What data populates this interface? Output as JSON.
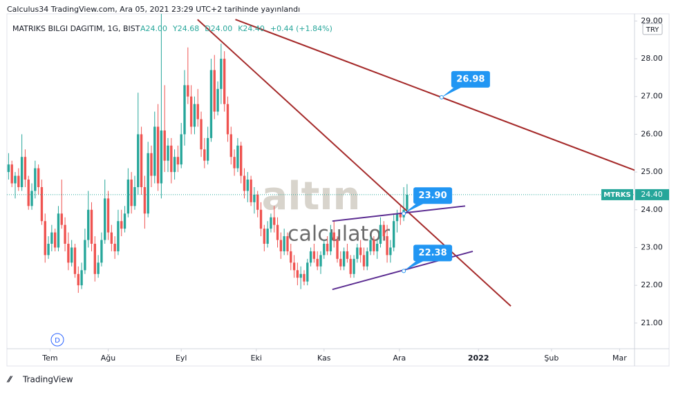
{
  "header": {
    "published": "Calculus34 TradingView.com, Ara 05, 2021 23:29 UTC+2 tarihinde yayınlandı",
    "symbol": "MATRIKS BILGI DAGITIM, 1G, BIST",
    "ohlc": [
      "A24.00",
      "Y24.68",
      "D24.00",
      "K24.40"
    ],
    "change": "+0.44 (+1.84%)",
    "currency": "TRY"
  },
  "watermark": {
    "brand": "altın",
    "sub": "calculator"
  },
  "dividend_badge": "D",
  "footer": "TradingView",
  "chart_data": {
    "type": "candlestick",
    "up_color": "#26a69a",
    "down_color": "#ef5350",
    "candles": [
      [
        25.0,
        25.5,
        24.8,
        25.2
      ],
      [
        25.2,
        25.3,
        24.6,
        24.7
      ],
      [
        24.7,
        25.0,
        24.3,
        24.9
      ],
      [
        24.9,
        25.1,
        24.5,
        24.6
      ],
      [
        24.6,
        26.0,
        24.5,
        25.4
      ],
      [
        25.4,
        25.6,
        24.6,
        24.8
      ],
      [
        24.8,
        24.9,
        24.0,
        24.1
      ],
      [
        24.1,
        24.7,
        24.0,
        24.5
      ],
      [
        24.5,
        25.3,
        24.3,
        25.1
      ],
      [
        25.1,
        25.2,
        24.4,
        24.6
      ],
      [
        24.6,
        24.8,
        23.6,
        23.7
      ],
      [
        23.7,
        23.9,
        22.6,
        22.8
      ],
      [
        22.8,
        23.3,
        22.7,
        23.1
      ],
      [
        23.1,
        23.6,
        22.9,
        23.4
      ],
      [
        23.4,
        23.5,
        22.9,
        23.0
      ],
      [
        23.0,
        24.1,
        22.9,
        23.9
      ],
      [
        23.9,
        24.8,
        23.5,
        23.6
      ],
      [
        23.6,
        23.8,
        22.9,
        23.1
      ],
      [
        23.1,
        23.4,
        22.4,
        22.6
      ],
      [
        22.6,
        23.2,
        22.5,
        23.0
      ],
      [
        23.0,
        23.1,
        22.2,
        22.3
      ],
      [
        22.3,
        22.5,
        21.8,
        22.0
      ],
      [
        22.0,
        22.6,
        21.9,
        22.4
      ],
      [
        22.4,
        23.5,
        22.3,
        23.2
      ],
      [
        23.2,
        24.5,
        23.0,
        24.0
      ],
      [
        24.0,
        24.2,
        22.9,
        23.1
      ],
      [
        23.1,
        23.3,
        22.1,
        22.3
      ],
      [
        22.3,
        22.8,
        22.2,
        22.6
      ],
      [
        22.6,
        23.4,
        22.5,
        23.2
      ],
      [
        23.2,
        24.8,
        23.1,
        24.3
      ],
      [
        24.3,
        24.5,
        23.2,
        23.4
      ],
      [
        23.4,
        23.6,
        22.9,
        23.1
      ],
      [
        23.1,
        23.3,
        22.7,
        22.9
      ],
      [
        22.9,
        24.0,
        22.8,
        23.7
      ],
      [
        23.7,
        24.0,
        23.3,
        23.5
      ],
      [
        23.5,
        24.1,
        23.4,
        23.9
      ],
      [
        23.9,
        25.1,
        23.8,
        24.8
      ],
      [
        24.8,
        25.0,
        23.9,
        24.1
      ],
      [
        24.1,
        24.9,
        24.0,
        24.6
      ],
      [
        24.6,
        27.1,
        24.4,
        26.0
      ],
      [
        26.0,
        26.2,
        24.4,
        24.6
      ],
      [
        24.6,
        24.9,
        23.5,
        23.9
      ],
      [
        23.9,
        25.8,
        23.8,
        25.5
      ],
      [
        25.5,
        25.7,
        24.6,
        24.9
      ],
      [
        24.9,
        26.6,
        24.7,
        26.2
      ],
      [
        26.2,
        26.8,
        24.5,
        24.7
      ],
      [
        24.7,
        29.3,
        24.3,
        26.1
      ],
      [
        26.1,
        27.3,
        25.0,
        25.3
      ],
      [
        25.3,
        25.9,
        25.0,
        25.7
      ],
      [
        25.7,
        25.9,
        24.7,
        25.0
      ],
      [
        25.0,
        25.6,
        24.8,
        25.4
      ],
      [
        25.4,
        25.7,
        25.0,
        25.2
      ],
      [
        25.2,
        26.3,
        25.1,
        26.0
      ],
      [
        26.0,
        27.7,
        25.7,
        27.3
      ],
      [
        27.3,
        28.3,
        26.8,
        27.0
      ],
      [
        27.0,
        27.3,
        26.0,
        26.2
      ],
      [
        26.2,
        27.0,
        26.0,
        26.8
      ],
      [
        26.8,
        27.2,
        26.2,
        26.4
      ],
      [
        26.4,
        26.6,
        25.4,
        25.6
      ],
      [
        25.6,
        25.9,
        25.1,
        25.3
      ],
      [
        25.3,
        26.2,
        25.2,
        25.9
      ],
      [
        25.9,
        28.0,
        25.8,
        27.7
      ],
      [
        27.7,
        28.1,
        26.4,
        26.6
      ],
      [
        26.6,
        27.4,
        26.5,
        27.2
      ],
      [
        27.2,
        28.4,
        26.8,
        28.0
      ],
      [
        28.0,
        28.2,
        26.6,
        26.8
      ],
      [
        26.8,
        27.0,
        25.8,
        26.0
      ],
      [
        26.0,
        26.2,
        25.2,
        25.4
      ],
      [
        25.4,
        25.6,
        24.9,
        25.1
      ],
      [
        25.1,
        25.9,
        25.0,
        25.7
      ],
      [
        25.7,
        25.8,
        24.7,
        24.9
      ],
      [
        24.9,
        25.1,
        24.3,
        24.5
      ],
      [
        24.5,
        25.0,
        24.2,
        24.8
      ],
      [
        24.8,
        24.9,
        24.1,
        24.2
      ],
      [
        24.2,
        24.6,
        23.9,
        24.4
      ],
      [
        24.4,
        24.5,
        23.8,
        24.0
      ],
      [
        24.0,
        24.2,
        23.3,
        23.5
      ],
      [
        23.5,
        23.6,
        22.9,
        23.1
      ],
      [
        23.1,
        23.7,
        23.0,
        23.5
      ],
      [
        23.5,
        23.9,
        23.4,
        23.8
      ],
      [
        23.8,
        24.1,
        23.4,
        23.6
      ],
      [
        23.6,
        23.8,
        23.0,
        23.2
      ],
      [
        23.2,
        23.4,
        22.7,
        22.9
      ],
      [
        22.9,
        23.5,
        22.8,
        23.3
      ],
      [
        23.3,
        23.4,
        22.8,
        22.9
      ],
      [
        22.9,
        23.1,
        22.4,
        22.6
      ],
      [
        22.6,
        22.8,
        22.2,
        22.4
      ],
      [
        22.4,
        22.6,
        22.0,
        22.2
      ],
      [
        22.2,
        22.5,
        21.9,
        22.3
      ],
      [
        22.3,
        22.4,
        22.0,
        22.1
      ],
      [
        22.1,
        22.7,
        22.0,
        22.6
      ],
      [
        22.6,
        23.0,
        22.5,
        22.9
      ],
      [
        22.9,
        23.1,
        22.6,
        22.7
      ],
      [
        22.7,
        22.9,
        22.4,
        22.5
      ],
      [
        22.5,
        22.9,
        22.3,
        22.8
      ],
      [
        22.8,
        23.2,
        22.7,
        23.1
      ],
      [
        23.1,
        23.3,
        22.8,
        22.9
      ],
      [
        22.9,
        23.6,
        22.8,
        23.4
      ],
      [
        23.4,
        23.7,
        23.0,
        23.2
      ],
      [
        23.2,
        23.3,
        22.6,
        22.7
      ],
      [
        22.7,
        22.9,
        22.4,
        22.5
      ],
      [
        22.5,
        23.0,
        22.4,
        22.9
      ],
      [
        22.9,
        23.1,
        22.6,
        22.7
      ],
      [
        22.7,
        22.8,
        22.2,
        22.3
      ],
      [
        22.3,
        22.8,
        22.2,
        22.7
      ],
      [
        22.7,
        23.1,
        22.6,
        23.0
      ],
      [
        23.0,
        23.2,
        22.6,
        22.8
      ],
      [
        22.8,
        23.0,
        22.4,
        22.5
      ],
      [
        22.5,
        23.0,
        22.4,
        22.9
      ],
      [
        22.9,
        23.3,
        22.8,
        23.2
      ],
      [
        23.2,
        23.3,
        22.8,
        22.9
      ],
      [
        22.9,
        23.2,
        22.7,
        23.1
      ],
      [
        23.1,
        23.8,
        23.0,
        23.6
      ],
      [
        23.6,
        23.7,
        23.2,
        23.3
      ],
      [
        23.3,
        23.6,
        22.6,
        22.8
      ],
      [
        22.8,
        23.2,
        22.6,
        23.0
      ],
      [
        23.0,
        23.9,
        22.9,
        23.7
      ],
      [
        23.7,
        24.0,
        23.4,
        23.9
      ],
      [
        23.9,
        24.1,
        23.6,
        23.8
      ],
      [
        23.8,
        24.6,
        23.7,
        24.0
      ],
      [
        24.0,
        24.68,
        24.0,
        24.4
      ]
    ],
    "xlim": [
      -0.5,
      188.5
    ],
    "xticks": [
      {
        "value": 12.5,
        "label": "Tem"
      },
      {
        "value": 30,
        "label": "Ağu"
      },
      {
        "value": 52,
        "label": "Eyl"
      },
      {
        "value": 74.6,
        "label": "Eki"
      },
      {
        "value": 95,
        "label": "Kas"
      },
      {
        "value": 117.7,
        "label": "Ara"
      },
      {
        "value": 141.5,
        "label": "2022"
      },
      {
        "value": 163.5,
        "label": "Şub"
      },
      {
        "value": 184,
        "label": "Mar"
      }
    ],
    "ylim": [
      20.32,
      29.19
    ],
    "yticks": [
      {
        "value": 21,
        "label": "21.00"
      },
      {
        "value": 22,
        "label": "22.00"
      },
      {
        "value": 23,
        "label": "23.00"
      },
      {
        "value": 24,
        "label": "24.00"
      },
      {
        "value": 25,
        "label": "25.00"
      },
      {
        "value": 26,
        "label": "26.00"
      },
      {
        "value": 27,
        "label": "27.00"
      },
      {
        "value": 28,
        "label": "28.00"
      },
      {
        "value": 29,
        "label": "29.00"
      }
    ],
    "last_price": {
      "value": 24.4,
      "label": "24.40",
      "ticker": "MTRKS"
    },
    "trend_lines": [
      {
        "color": "#a52a2a",
        "x": [
          56.9,
          151.25
        ],
        "y": [
          29.04,
          21.45
        ]
      },
      {
        "color": "#a52a2a",
        "x": [
          68.3,
          188.75
        ],
        "y": [
          29.04,
          25.04
        ]
      },
      {
        "color": "#5b2c91",
        "x": [
          97.5,
          137.5
        ],
        "y": [
          23.7,
          24.1
        ]
      },
      {
        "color": "#5b2c91",
        "x": [
          97.5,
          139.8
        ],
        "y": [
          21.89,
          22.9
        ]
      }
    ],
    "callouts": [
      {
        "x": 130.4,
        "value": 26.98,
        "label": "26.98"
      },
      {
        "x": 119,
        "value": 23.9,
        "label": "23.90"
      },
      {
        "x": 119,
        "value": 22.38,
        "label": "22.38"
      }
    ]
  }
}
